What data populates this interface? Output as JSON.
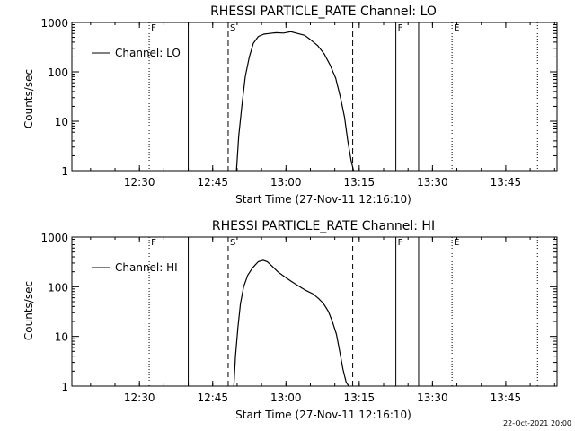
{
  "footer": {
    "timestamp": "22-Oct-2021 20:00"
  },
  "chart_data": [
    {
      "type": "line",
      "title": "RHESSI PARTICLE_RATE Channel: LO",
      "xlabel": "Start Time (27-Nov-11 12:16:10)",
      "ylabel": "Counts/sec",
      "yscale": "log",
      "ylim": [
        1,
        1000
      ],
      "xlim": [
        "12:16:10",
        "13:55:30"
      ],
      "x_ticks": [
        "12:30",
        "12:45",
        "13:00",
        "13:15",
        "13:30",
        "13:45"
      ],
      "y_ticks": [
        "1",
        "10",
        "100",
        "1000"
      ],
      "legend": {
        "entries": [
          "Channel: LO"
        ],
        "position": "top-left"
      },
      "markers": {
        "solid": [
          "12:40:00",
          "13:22:30",
          "13:27:10"
        ],
        "dotted": [
          "12:32:00",
          "13:34:00",
          "13:51:30"
        ],
        "dashed": [
          "12:48:10",
          "13:13:40"
        ]
      },
      "flags": {
        "F": [
          "12:32:00",
          "13:22:30"
        ],
        "S": "12:48:10",
        "E": "13:34:00"
      },
      "series": [
        {
          "name": "Channel: LO",
          "x": [
            "12:49:52",
            "12:50:20",
            "12:51:00",
            "12:51:40",
            "12:52:30",
            "12:53:20",
            "12:54:20",
            "12:55:30",
            "12:56:40",
            "12:58:00",
            "12:59:30",
            "13:01:00",
            "13:02:20",
            "13:03:50",
            "13:05:00",
            "13:06:30",
            "13:07:50",
            "13:09:00",
            "13:10:10",
            "13:11:10",
            "13:12:00",
            "13:12:40",
            "13:13:20",
            "13:13:50"
          ],
          "values": [
            1,
            5,
            22,
            80,
            200,
            380,
            520,
            580,
            600,
            620,
            610,
            650,
            600,
            550,
            450,
            340,
            230,
            140,
            75,
            30,
            12,
            4,
            1.6,
            1
          ]
        }
      ]
    },
    {
      "type": "line",
      "title": "RHESSI PARTICLE_RATE Channel: HI",
      "xlabel": "Start Time (27-Nov-11 12:16:10)",
      "ylabel": "Counts/sec",
      "yscale": "log",
      "ylim": [
        1,
        1000
      ],
      "xlim": [
        "12:16:10",
        "13:55:30"
      ],
      "x_ticks": [
        "12:30",
        "12:45",
        "13:00",
        "13:15",
        "13:30",
        "13:45"
      ],
      "y_ticks": [
        "1",
        "10",
        "100",
        "1000"
      ],
      "legend": {
        "entries": [
          "Channel: HI"
        ],
        "position": "top-left"
      },
      "markers": {
        "solid": [
          "12:40:00",
          "13:22:30",
          "13:27:10"
        ],
        "dotted": [
          "12:32:00",
          "13:34:00",
          "13:51:30"
        ],
        "dashed": [
          "12:48:10",
          "13:13:40"
        ]
      },
      "flags": {
        "F": [
          "12:32:00",
          "13:22:30"
        ],
        "S": "12:48:10",
        "E": "13:34:00"
      },
      "series": [
        {
          "name": "Channel: HI",
          "x": [
            "12:49:20",
            "12:49:40",
            "12:50:10",
            "12:50:40",
            "12:51:20",
            "12:52:10",
            "12:53:10",
            "12:54:20",
            "12:55:20",
            "12:56:10",
            "12:57:10",
            "12:58:20",
            "12:59:40",
            "13:01:00",
            "13:02:30",
            "13:04:00",
            "13:05:30",
            "13:06:40",
            "13:07:40",
            "13:08:40",
            "13:09:30",
            "13:10:20",
            "13:11:00",
            "13:11:40",
            "13:12:20",
            "13:12:50"
          ],
          "values": [
            1,
            4,
            15,
            45,
            100,
            170,
            240,
            320,
            340,
            320,
            260,
            200,
            160,
            130,
            105,
            85,
            72,
            58,
            46,
            32,
            20,
            11,
            5,
            2.2,
            1.2,
            1
          ]
        }
      ]
    }
  ]
}
